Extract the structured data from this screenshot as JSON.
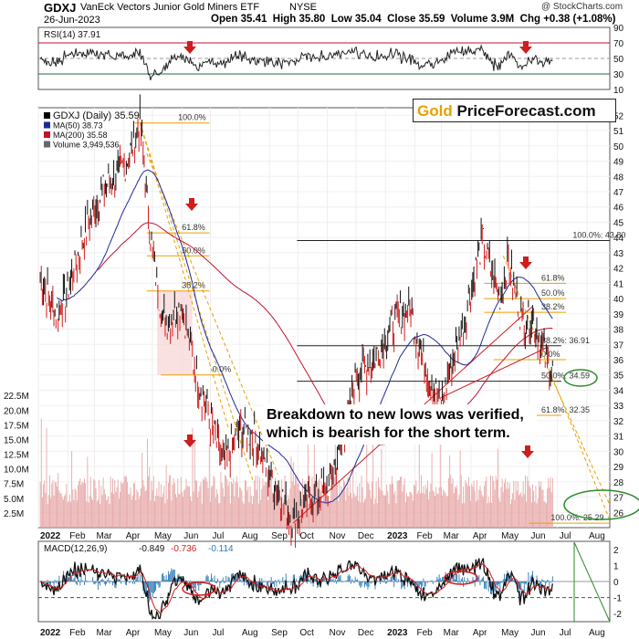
{
  "header": {
    "ticker": "GDXJ",
    "name": "VanEck Vectors Junior Gold Miners ETF",
    "exchange": "NYSE",
    "source": "@ StockCharts.com",
    "date": "26-Jun-2023",
    "open_label": "Open",
    "open": "35.41",
    "high_label": "High",
    "high": "35.80",
    "low_label": "Low",
    "low": "35.04",
    "close_label": "Close",
    "close": "35.59",
    "volume_label": "Volume",
    "volume": "3.9M",
    "chg_label": "Chg",
    "chg": "+0.38 (+1.08%)"
  },
  "logo": {
    "gold": "Gold",
    "rest": "PriceForecast.com"
  },
  "annotation": {
    "line1": "Breakdown to new lows was verified,",
    "line2": "which is bearish for the short term."
  },
  "colors": {
    "price_up": "#111111",
    "price_down": "#d11c1c",
    "ma50": "#1f2a9a",
    "ma200": "#c4122e",
    "fib": "#e8a000",
    "volume": "#e7a8a8",
    "rsi_line": "#222222",
    "macd_signal": "#d11c1c",
    "hist": "#2a78b5",
    "arrow": "#d11c1c",
    "ellipse": "#2a8a2a"
  },
  "chart_data": [
    {
      "type": "line",
      "panel": "RSI",
      "legend": "RSI(14) 37.91",
      "y_ticks": [
        "90",
        "70",
        "50",
        "30",
        "10"
      ],
      "ylim": [
        10,
        90
      ],
      "overbought": 70,
      "oversold": 30,
      "last": 37.91
    },
    {
      "type": "line",
      "panel": "price",
      "title": "GDXJ (Daily) 35.59",
      "legend": [
        "GDXJ (Daily) 35.59",
        "MA(50) 38.73",
        "MA(200) 35.58",
        "Volume 3,949,536"
      ],
      "x_ticks": [
        "2022",
        "Feb",
        "Mar",
        "Apr",
        "May",
        "Jun",
        "Jul",
        "Aug",
        "Sep",
        "Oct",
        "Nov",
        "Dec",
        "2023",
        "Feb",
        "Mar",
        "Apr",
        "May",
        "Jun",
        "Jul",
        "Aug"
      ],
      "y_ticks": [
        "52",
        "51",
        "50",
        "49",
        "48",
        "47",
        "46",
        "45",
        "44",
        "43",
        "42",
        "41",
        "40",
        "39",
        "38",
        "37",
        "36",
        "35",
        "34",
        "33",
        "32",
        "31",
        "30",
        "29",
        "28",
        "27",
        "26"
      ],
      "ylim": [
        25,
        52.5
      ],
      "close_series": [
        {
          "x": "2022-01-03",
          "y": 41.5
        },
        {
          "x": "2022-01-20",
          "y": 39.0
        },
        {
          "x": "2022-02-01",
          "y": 40.5
        },
        {
          "x": "2022-02-15",
          "y": 43.5
        },
        {
          "x": "2022-03-01",
          "y": 46.0
        },
        {
          "x": "2022-03-15",
          "y": 47.5
        },
        {
          "x": "2022-04-01",
          "y": 48.5
        },
        {
          "x": "2022-04-18",
          "y": 51.5
        },
        {
          "x": "2022-05-01",
          "y": 43.0
        },
        {
          "x": "2022-05-12",
          "y": 38.5
        },
        {
          "x": "2022-06-01",
          "y": 39.5
        },
        {
          "x": "2022-06-16",
          "y": 35.0
        },
        {
          "x": "2022-07-01",
          "y": 32.0
        },
        {
          "x": "2022-07-15",
          "y": 29.0
        },
        {
          "x": "2022-08-01",
          "y": 31.5
        },
        {
          "x": "2022-08-15",
          "y": 31.0
        },
        {
          "x": "2022-09-01",
          "y": 28.5
        },
        {
          "x": "2022-09-26",
          "y": 25.5
        },
        {
          "x": "2022-10-15",
          "y": 27.0
        },
        {
          "x": "2022-11-01",
          "y": 27.5
        },
        {
          "x": "2022-11-20",
          "y": 31.5
        },
        {
          "x": "2022-12-01",
          "y": 35.0
        },
        {
          "x": "2022-12-20",
          "y": 36.0
        },
        {
          "x": "2023-01-05",
          "y": 38.0
        },
        {
          "x": "2023-01-26",
          "y": 39.5
        },
        {
          "x": "2023-02-10",
          "y": 36.0
        },
        {
          "x": "2023-02-28",
          "y": 33.0
        },
        {
          "x": "2023-03-15",
          "y": 36.5
        },
        {
          "x": "2023-04-01",
          "y": 40.5
        },
        {
          "x": "2023-04-13",
          "y": 43.8
        },
        {
          "x": "2023-05-01",
          "y": 40.0
        },
        {
          "x": "2023-05-10",
          "y": 42.5
        },
        {
          "x": "2023-05-25",
          "y": 38.5
        },
        {
          "x": "2023-06-05",
          "y": 39.0
        },
        {
          "x": "2023-06-15",
          "y": 36.5
        },
        {
          "x": "2023-06-26",
          "y": 35.59
        }
      ],
      "fib_levels": [
        {
          "label": "100.0%",
          "y": 51.5
        },
        {
          "label": "61.8%",
          "y": 44.3
        },
        {
          "label": "50.0%",
          "y": 42.8
        },
        {
          "label": "38.2%",
          "y": 40.5
        },
        {
          "label": "0.0%",
          "y": 35.0
        },
        {
          "label": "100.0%: 43.80",
          "y": 43.8
        },
        {
          "label": "61.8%",
          "y": 41.0
        },
        {
          "label": "50.0%",
          "y": 40.0
        },
        {
          "label": "38.2%",
          "y": 39.1
        },
        {
          "label": "38.2%: 36.91",
          "y": 36.91
        },
        {
          "label": "0.0%",
          "y": 36.0
        },
        {
          "label": "50.0%: 34.59",
          "y": 34.59
        },
        {
          "label": "61.8%: 32.35",
          "y": 32.35
        },
        {
          "label": "100.0%: 25.29",
          "y": 25.29
        }
      ]
    },
    {
      "type": "bar",
      "panel": "volume",
      "y_ticks": [
        "22.5M",
        "20.0M",
        "17.5M",
        "15.0M",
        "12.5M",
        "10.0M",
        "7.5M",
        "5.0M",
        "2.5M"
      ],
      "ylim": [
        0,
        23
      ],
      "last": 3.9
    },
    {
      "type": "line",
      "panel": "MACD",
      "legend": [
        "MACD(12,26,9)",
        "-0.849",
        "-0.736",
        "-0.114"
      ],
      "y_ticks": [
        "2",
        "1",
        "0",
        "-1",
        "-2"
      ],
      "ylim": [
        -2.5,
        2.5
      ],
      "macd": -0.849,
      "signal": -0.736,
      "histogram": -0.114
    }
  ]
}
